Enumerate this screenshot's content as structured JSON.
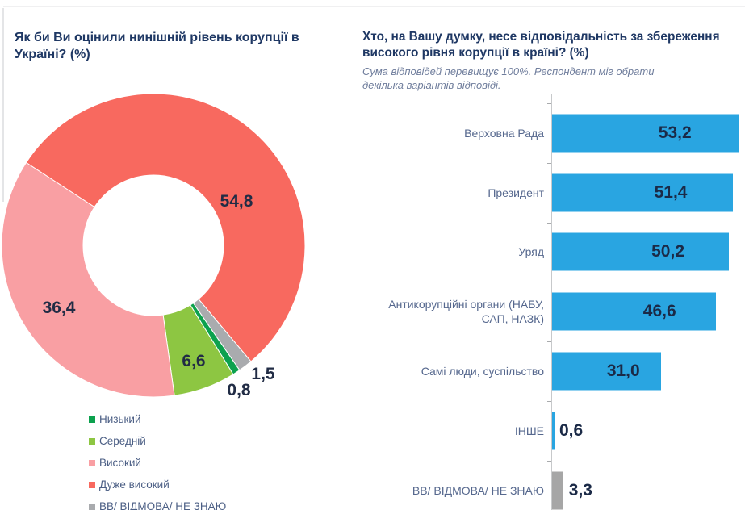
{
  "chart_data": [
    {
      "type": "pie",
      "donut": true,
      "title": "Як би Ви оцінили нинішній рівень корупції в Україні? (%)",
      "legend_position": "bottom-left",
      "slices": [
        {
          "label": "Низький",
          "value": 0.8,
          "value_label": "0,8",
          "color": "#0CA14E"
        },
        {
          "label": "Середній",
          "value": 6.6,
          "value_label": "6,6",
          "color": "#8DC642"
        },
        {
          "label": "Високий",
          "value": 36.4,
          "value_label": "36,4",
          "color": "#F99FA3"
        },
        {
          "label": "Дуже високий",
          "value": 54.8,
          "value_label": "54,8",
          "color": "#F8695F"
        },
        {
          "label": "ВВ/ ВІДМОВА/ НЕ ЗНАЮ",
          "value": 1.5,
          "value_label": "1,5",
          "color": "#A9ABAE"
        }
      ]
    },
    {
      "type": "bar",
      "orientation": "horizontal",
      "title": "Хто, на Вашу думку, несе відповідальність за збереження високого рівня корупції в країні? (%)",
      "subtitle": "Сума відповідей перевищує 100%. Респондент міг обрати декілька варіантів відповіді.",
      "xlim": [
        0,
        55
      ],
      "grid": false,
      "categories": [
        "Верховна Рада",
        "Президент",
        "Уряд",
        "Антикорупційні органи (НАБУ, САП, НАЗК)",
        "Самі люди, суспільство",
        "ІНШЕ",
        "ВВ/ ВІДМОВА/ НЕ ЗНАЮ"
      ],
      "values": [
        53.2,
        51.4,
        50.2,
        46.6,
        31.0,
        0.6,
        3.3
      ],
      "value_labels": [
        "53,2",
        "51,4",
        "50,2",
        "46,6",
        "31,0",
        "0,6",
        "3,3"
      ],
      "bar_colors": [
        "#29A5E1",
        "#29A5E1",
        "#29A5E1",
        "#29A5E1",
        "#29A5E1",
        "#29A5E1",
        "#A6A6A6"
      ]
    }
  ],
  "colors": {
    "title_navy": "#1F3864",
    "subtitle_gray_blue": "#6F7D9C",
    "category_label": "#56688E",
    "value_label_dark": "#1B2A47",
    "axis_gray": "#C7C9CB"
  }
}
